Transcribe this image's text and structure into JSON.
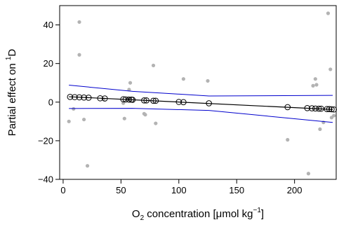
{
  "chart_data": {
    "type": "scatter",
    "xlabel": {
      "pre": "O",
      "sub": "2",
      "mid": " concentration [μmol kg",
      "sup": "−1",
      "post": "]"
    },
    "ylabel": {
      "pre": "Partial effect on ",
      "sup": "1",
      "post": "D"
    },
    "xlim": [
      -3,
      236
    ],
    "ylim": [
      -40,
      50
    ],
    "xticks": [
      0,
      50,
      100,
      150,
      200
    ],
    "yticks": [
      -40,
      -20,
      0,
      20,
      40
    ],
    "grid": false,
    "colors": {
      "residuals": "#b3b3b3",
      "fit": "#000000",
      "ci": "#0000cd",
      "markers": "#000000"
    },
    "residuals": [
      {
        "x": 5,
        "y": -10
      },
      {
        "x": 9,
        "y": -3.5
      },
      {
        "x": 14,
        "y": 41.5
      },
      {
        "x": 14,
        "y": 24.5
      },
      {
        "x": 18,
        "y": -9
      },
      {
        "x": 21,
        "y": -33
      },
      {
        "x": 35,
        "y": 1.5
      },
      {
        "x": 52,
        "y": -0.5
      },
      {
        "x": 53,
        "y": -8.5
      },
      {
        "x": 56,
        "y": 2
      },
      {
        "x": 57,
        "y": 6.5
      },
      {
        "x": 58,
        "y": 10
      },
      {
        "x": 70,
        "y": -6
      },
      {
        "x": 71,
        "y": -6.5
      },
      {
        "x": 78,
        "y": 19
      },
      {
        "x": 80,
        "y": -11
      },
      {
        "x": 104,
        "y": 12
      },
      {
        "x": 125,
        "y": 11
      },
      {
        "x": 194,
        "y": -19.5
      },
      {
        "x": 212,
        "y": -37
      },
      {
        "x": 216,
        "y": 8.5
      },
      {
        "x": 218,
        "y": 12
      },
      {
        "x": 219,
        "y": 9
      },
      {
        "x": 222,
        "y": -14
      },
      {
        "x": 225,
        "y": -10.5
      },
      {
        "x": 229,
        "y": 46
      },
      {
        "x": 231,
        "y": 17
      },
      {
        "x": 232,
        "y": -8
      },
      {
        "x": 234,
        "y": -7
      }
    ],
    "fit": [
      {
        "x": 5,
        "y": 2.8
      },
      {
        "x": 233,
        "y": -3.8
      }
    ],
    "fit_points": [
      {
        "x": 6,
        "y": 2.7
      },
      {
        "x": 10,
        "y": 2.6
      },
      {
        "x": 14,
        "y": 2.5
      },
      {
        "x": 18,
        "y": 2.4
      },
      {
        "x": 22,
        "y": 2.3
      },
      {
        "x": 32,
        "y": 2.0
      },
      {
        "x": 36,
        "y": 1.9
      },
      {
        "x": 52,
        "y": 1.5
      },
      {
        "x": 54,
        "y": 1.4
      },
      {
        "x": 57,
        "y": 1.3
      },
      {
        "x": 59,
        "y": 1.3
      },
      {
        "x": 60,
        "y": 1.2
      },
      {
        "x": 70,
        "y": 0.9
      },
      {
        "x": 72,
        "y": 0.9
      },
      {
        "x": 78,
        "y": 0.7
      },
      {
        "x": 80,
        "y": 0.7
      },
      {
        "x": 100,
        "y": 0.1
      },
      {
        "x": 104,
        "y": 0.0
      },
      {
        "x": 126,
        "y": -0.6
      },
      {
        "x": 194,
        "y": -2.6
      },
      {
        "x": 211,
        "y": -3.1
      },
      {
        "x": 215,
        "y": -3.2
      },
      {
        "x": 218,
        "y": -3.3
      },
      {
        "x": 221,
        "y": -3.4
      },
      {
        "x": 223,
        "y": -3.4
      },
      {
        "x": 228,
        "y": -3.6
      },
      {
        "x": 230,
        "y": -3.6
      },
      {
        "x": 232,
        "y": -3.7
      },
      {
        "x": 234,
        "y": -3.8
      }
    ],
    "ci_upper": [
      {
        "x": 5,
        "y": 8.8
      },
      {
        "x": 60,
        "y": 5.6
      },
      {
        "x": 126,
        "y": 3.2
      },
      {
        "x": 233,
        "y": 3.5
      }
    ],
    "ci_lower": [
      {
        "x": 5,
        "y": -3.3
      },
      {
        "x": 60,
        "y": -3.2
      },
      {
        "x": 126,
        "y": -4.3
      },
      {
        "x": 233,
        "y": -10.5
      }
    ]
  }
}
